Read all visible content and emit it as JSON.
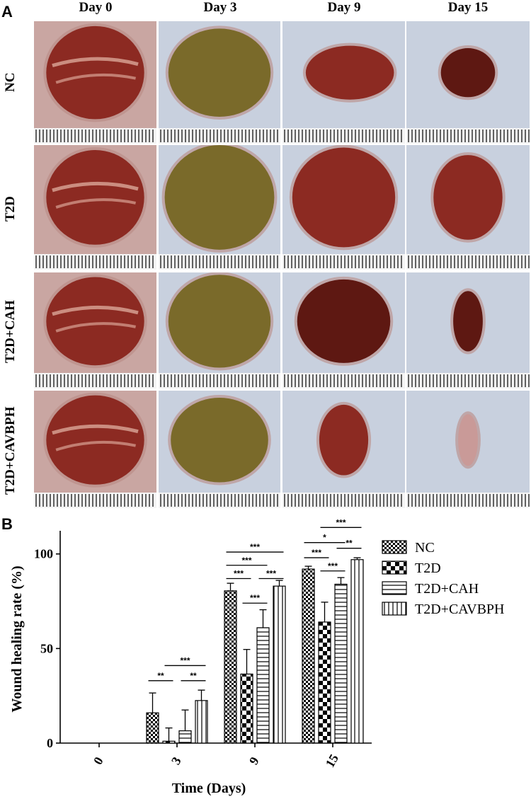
{
  "panelA": {
    "letter": "A",
    "columns": [
      "Day 0",
      "Day 3",
      "Day 9",
      "Day 15"
    ],
    "rows": [
      "NC",
      "T2D",
      "T2D+CAH",
      "T2D+CAVBPH"
    ]
  },
  "panelB": {
    "letter": "B"
  },
  "chart_data": {
    "type": "bar",
    "title": "",
    "xlabel": "Time (Days)",
    "ylabel": "Wound healing rate (%)",
    "ylim": [
      0,
      110
    ],
    "yticks": [
      0,
      50,
      100
    ],
    "categories": [
      "0",
      "3",
      "9",
      "15"
    ],
    "legend_position": "right",
    "grid": false,
    "series": [
      {
        "name": "NC",
        "pattern": "checker-fine",
        "values": [
          0,
          16,
          80.5,
          92
        ],
        "errors": [
          0,
          10.5,
          4,
          1.5
        ]
      },
      {
        "name": "T2D",
        "pattern": "checker-coarse",
        "values": [
          0,
          1,
          36.5,
          64
        ],
        "errors": [
          0,
          7,
          13,
          10.5
        ]
      },
      {
        "name": "T2D+CAH",
        "pattern": "horizontal-lines",
        "values": [
          0,
          6.5,
          61,
          84
        ],
        "errors": [
          0,
          11,
          9.5,
          3.5
        ]
      },
      {
        "name": "T2D+CAVBPH",
        "pattern": "vertical-lines",
        "values": [
          0,
          22.5,
          83,
          97
        ],
        "errors": [
          0,
          5.5,
          3,
          1
        ]
      }
    ],
    "significance": [
      {
        "category": "3",
        "from": 0,
        "to": 1,
        "label": "**",
        "y": 33
      },
      {
        "category": "3",
        "from": 2,
        "to": 3,
        "label": "**",
        "y": 33
      },
      {
        "category": "3",
        "from": 1,
        "to": 3,
        "label": "***",
        "y": 41
      },
      {
        "category": "9",
        "from": 0,
        "to": 1,
        "label": "***",
        "y": 87
      },
      {
        "category": "9",
        "from": 0,
        "to": 2,
        "label": "***",
        "y": 94
      },
      {
        "category": "9",
        "from": 0,
        "to": 3,
        "label": "***",
        "y": 101
      },
      {
        "category": "9",
        "from": 2,
        "to": 3,
        "label": "***",
        "y": 87
      },
      {
        "category": "9",
        "from": 1,
        "to": 2,
        "label": "***",
        "y": 74
      },
      {
        "category": "15",
        "from": 0,
        "to": 1,
        "label": "***",
        "y": 98
      },
      {
        "category": "15",
        "from": 0,
        "to": 2,
        "label": "*",
        "y": 106
      },
      {
        "category": "15",
        "from": 1,
        "to": 3,
        "label": "***",
        "y": 114
      },
      {
        "category": "15",
        "from": 1,
        "to": 2,
        "label": "***",
        "y": 91
      },
      {
        "category": "15",
        "from": 2,
        "to": 3,
        "label": "**",
        "y": 103
      }
    ]
  },
  "colors": {
    "background": "#ffffff",
    "skin": "#d9d4da",
    "skin_blue": "#c8d0de",
    "wound_red": "#8c2a22",
    "wound_dark": "#5e1812",
    "scab_olive": "#7a6a2a",
    "ruler_dark": "#222222"
  }
}
